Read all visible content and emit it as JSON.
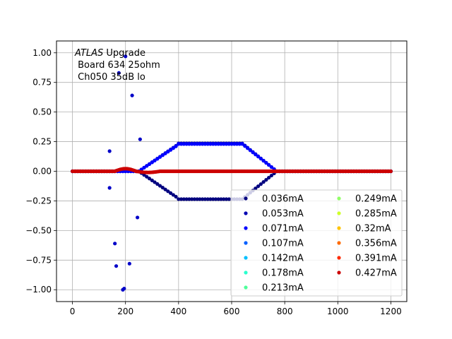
{
  "chart_data": {
    "type": "scatter",
    "annotation": {
      "italic": "ATLAS",
      "line1_rest": " Upgrade",
      "line2": " Board 634 25ohm",
      "line3": " Ch050 35dB lo"
    },
    "xlim": [
      -60,
      1260
    ],
    "ylim": [
      -1.1,
      1.1
    ],
    "xticks": [
      0,
      200,
      400,
      600,
      800,
      1000,
      1200
    ],
    "yticks": [
      -1.0,
      -0.75,
      -0.5,
      -0.25,
      0.0,
      0.25,
      0.5,
      0.75,
      1.0
    ],
    "xtick_labels": [
      "0",
      "200",
      "400",
      "600",
      "800",
      "1000",
      "1200"
    ],
    "ytick_labels": [
      "−1.00",
      "−0.75",
      "−0.50",
      "−0.25",
      "0.00",
      "0.25",
      "0.50",
      "0.75",
      "1.00"
    ],
    "grid": true,
    "legend_position": "lower-right",
    "series": [
      {
        "name": "0.036mA",
        "color": "#00007f"
      },
      {
        "name": "0.053mA",
        "color": "#0000b2"
      },
      {
        "name": "0.071mA",
        "color": "#0000ff"
      },
      {
        "name": "0.107mA",
        "color": "#0060ff"
      },
      {
        "name": "0.142mA",
        "color": "#00c0ff"
      },
      {
        "name": "0.178mA",
        "color": "#29ffce"
      },
      {
        "name": "0.213mA",
        "color": "#4dff9a"
      },
      {
        "name": "0.249mA",
        "color": "#91ff66"
      },
      {
        "name": "0.285mA",
        "color": "#ceff29"
      },
      {
        "name": "0.32mA",
        "color": "#ffc400"
      },
      {
        "name": "0.356mA",
        "color": "#ff6b00"
      },
      {
        "name": "0.391mA",
        "color": "#ff2a00"
      },
      {
        "name": "0.427mA",
        "color": "#cc0000"
      }
    ]
  }
}
